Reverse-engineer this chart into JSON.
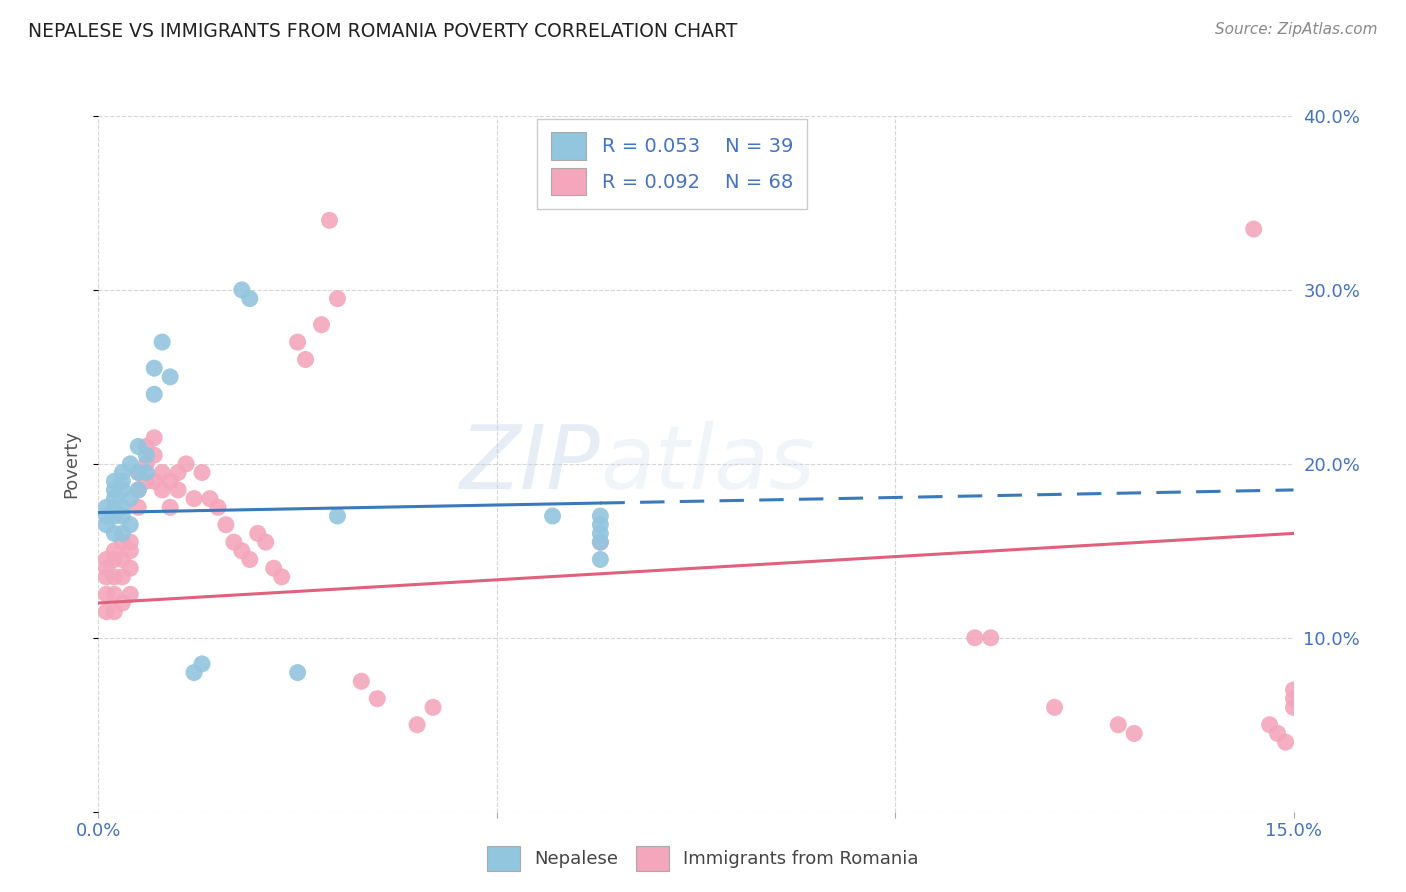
{
  "title": "NEPALESE VS IMMIGRANTS FROM ROMANIA POVERTY CORRELATION CHART",
  "source": "Source: ZipAtlas.com",
  "ylabel": "Poverty",
  "xlim": [
    0.0,
    0.15
  ],
  "ylim": [
    0.0,
    0.4
  ],
  "legend_r1": "R = 0.053",
  "legend_n1": "N = 39",
  "legend_r2": "R = 0.092",
  "legend_n2": "N = 68",
  "color_blue": "#92c5de",
  "color_pink": "#f4a6bc",
  "line_color_blue": "#3a7aba",
  "line_color_pink": "#e0607e",
  "watermark_zip": "ZIP",
  "watermark_atlas": "atlas",
  "nepalese_x": [
    0.001,
    0.001,
    0.001,
    0.002,
    0.002,
    0.002,
    0.002,
    0.002,
    0.002,
    0.003,
    0.003,
    0.003,
    0.003,
    0.003,
    0.003,
    0.004,
    0.004,
    0.004,
    0.005,
    0.005,
    0.005,
    0.006,
    0.006,
    0.007,
    0.007,
    0.008,
    0.009,
    0.012,
    0.013,
    0.018,
    0.019,
    0.025,
    0.03,
    0.057,
    0.063,
    0.063,
    0.063,
    0.063,
    0.063
  ],
  "nepalese_y": [
    0.175,
    0.17,
    0.165,
    0.19,
    0.185,
    0.18,
    0.175,
    0.17,
    0.16,
    0.195,
    0.19,
    0.185,
    0.175,
    0.17,
    0.16,
    0.2,
    0.18,
    0.165,
    0.21,
    0.195,
    0.185,
    0.205,
    0.195,
    0.255,
    0.24,
    0.27,
    0.25,
    0.08,
    0.085,
    0.3,
    0.295,
    0.08,
    0.17,
    0.17,
    0.17,
    0.165,
    0.16,
    0.155,
    0.145
  ],
  "romania_x": [
    0.001,
    0.001,
    0.001,
    0.001,
    0.001,
    0.002,
    0.002,
    0.002,
    0.002,
    0.002,
    0.003,
    0.003,
    0.003,
    0.003,
    0.004,
    0.004,
    0.004,
    0.004,
    0.005,
    0.005,
    0.005,
    0.006,
    0.006,
    0.006,
    0.007,
    0.007,
    0.007,
    0.008,
    0.008,
    0.009,
    0.009,
    0.01,
    0.01,
    0.011,
    0.012,
    0.013,
    0.014,
    0.015,
    0.016,
    0.017,
    0.018,
    0.019,
    0.02,
    0.021,
    0.022,
    0.023,
    0.025,
    0.026,
    0.028,
    0.029,
    0.03,
    0.033,
    0.035,
    0.04,
    0.042,
    0.063,
    0.11,
    0.112,
    0.12,
    0.128,
    0.13,
    0.145,
    0.147,
    0.148,
    0.149,
    0.15,
    0.15,
    0.15
  ],
  "romania_y": [
    0.145,
    0.14,
    0.135,
    0.125,
    0.115,
    0.15,
    0.145,
    0.135,
    0.125,
    0.115,
    0.155,
    0.145,
    0.135,
    0.12,
    0.155,
    0.15,
    0.14,
    0.125,
    0.195,
    0.185,
    0.175,
    0.21,
    0.2,
    0.19,
    0.215,
    0.205,
    0.19,
    0.195,
    0.185,
    0.19,
    0.175,
    0.195,
    0.185,
    0.2,
    0.18,
    0.195,
    0.18,
    0.175,
    0.165,
    0.155,
    0.15,
    0.145,
    0.16,
    0.155,
    0.14,
    0.135,
    0.27,
    0.26,
    0.28,
    0.34,
    0.295,
    0.075,
    0.065,
    0.05,
    0.06,
    0.155,
    0.1,
    0.1,
    0.06,
    0.05,
    0.045,
    0.335,
    0.05,
    0.045,
    0.04,
    0.07,
    0.065,
    0.06
  ]
}
